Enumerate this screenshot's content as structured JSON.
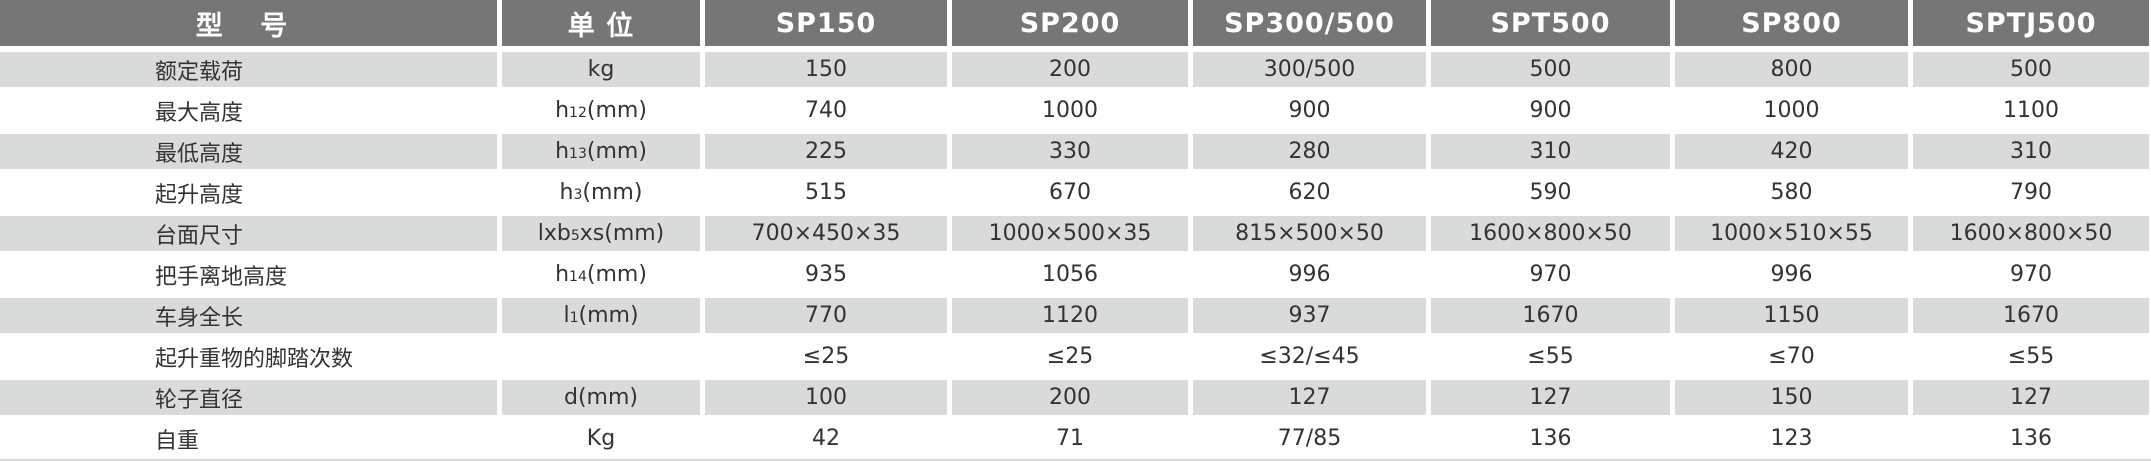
{
  "header": {
    "model_label": "型 号",
    "unit_label": "单 位",
    "models": [
      "SP150",
      "SP200",
      "SP300/500",
      "SPT500",
      "SP800",
      "SPTJ500"
    ]
  },
  "rows": [
    {
      "label": "额定载荷",
      "unit": {
        "base": "kg",
        "sub": "",
        "rest": ""
      },
      "values": [
        "150",
        "200",
        "300/500",
        "500",
        "800",
        "500"
      ]
    },
    {
      "label": "最大高度",
      "unit": {
        "base": "h",
        "sub": "12",
        "rest": "(mm)"
      },
      "values": [
        "740",
        "1000",
        "900",
        "900",
        "1000",
        "1100"
      ]
    },
    {
      "label": "最低高度",
      "unit": {
        "base": "h",
        "sub": "13",
        "rest": "(mm)"
      },
      "values": [
        "225",
        "330",
        "280",
        "310",
        "420",
        "310"
      ]
    },
    {
      "label": "起升高度",
      "unit": {
        "base": "h",
        "sub": "3",
        "rest": "(mm)"
      },
      "values": [
        "515",
        "670",
        "620",
        "590",
        "580",
        "790"
      ]
    },
    {
      "label": "台面尺寸",
      "unit": {
        "base": "lxb",
        "sub": "5",
        "rest": "xs(mm)"
      },
      "values": [
        "700×450×35",
        "1000×500×35",
        "815×500×50",
        "1600×800×50",
        "1000×510×55",
        "1600×800×50"
      ]
    },
    {
      "label": "把手离地高度",
      "unit": {
        "base": "h",
        "sub": "14",
        "rest": "(mm)"
      },
      "values": [
        "935",
        "1056",
        "996",
        "970",
        "996",
        "970"
      ]
    },
    {
      "label": "车身全长",
      "unit": {
        "base": "l",
        "sub": "1",
        "rest": "(mm)"
      },
      "values": [
        "770",
        "1120",
        "937",
        "1670",
        "1150",
        "1670"
      ]
    },
    {
      "label": "起升重物的脚踏次数",
      "unit": {
        "base": "",
        "sub": "",
        "rest": ""
      },
      "values": [
        "≤25",
        "≤25",
        "≤32/≤45",
        "≤55",
        "≤70",
        "≤55"
      ]
    },
    {
      "label": "轮子直径",
      "unit": {
        "base": "d",
        "sub": "",
        "rest": "(mm)"
      },
      "values": [
        "100",
        "200",
        "127",
        "127",
        "150",
        "127"
      ]
    },
    {
      "label": "自重",
      "unit": {
        "base": "Kg",
        "sub": "",
        "rest": ""
      },
      "values": [
        "42",
        "71",
        "77/85",
        "136",
        "123",
        "136"
      ]
    }
  ],
  "colors": {
    "header_bg": "#767676",
    "stripe_bg": "#d9dbda",
    "text": "#333333"
  }
}
